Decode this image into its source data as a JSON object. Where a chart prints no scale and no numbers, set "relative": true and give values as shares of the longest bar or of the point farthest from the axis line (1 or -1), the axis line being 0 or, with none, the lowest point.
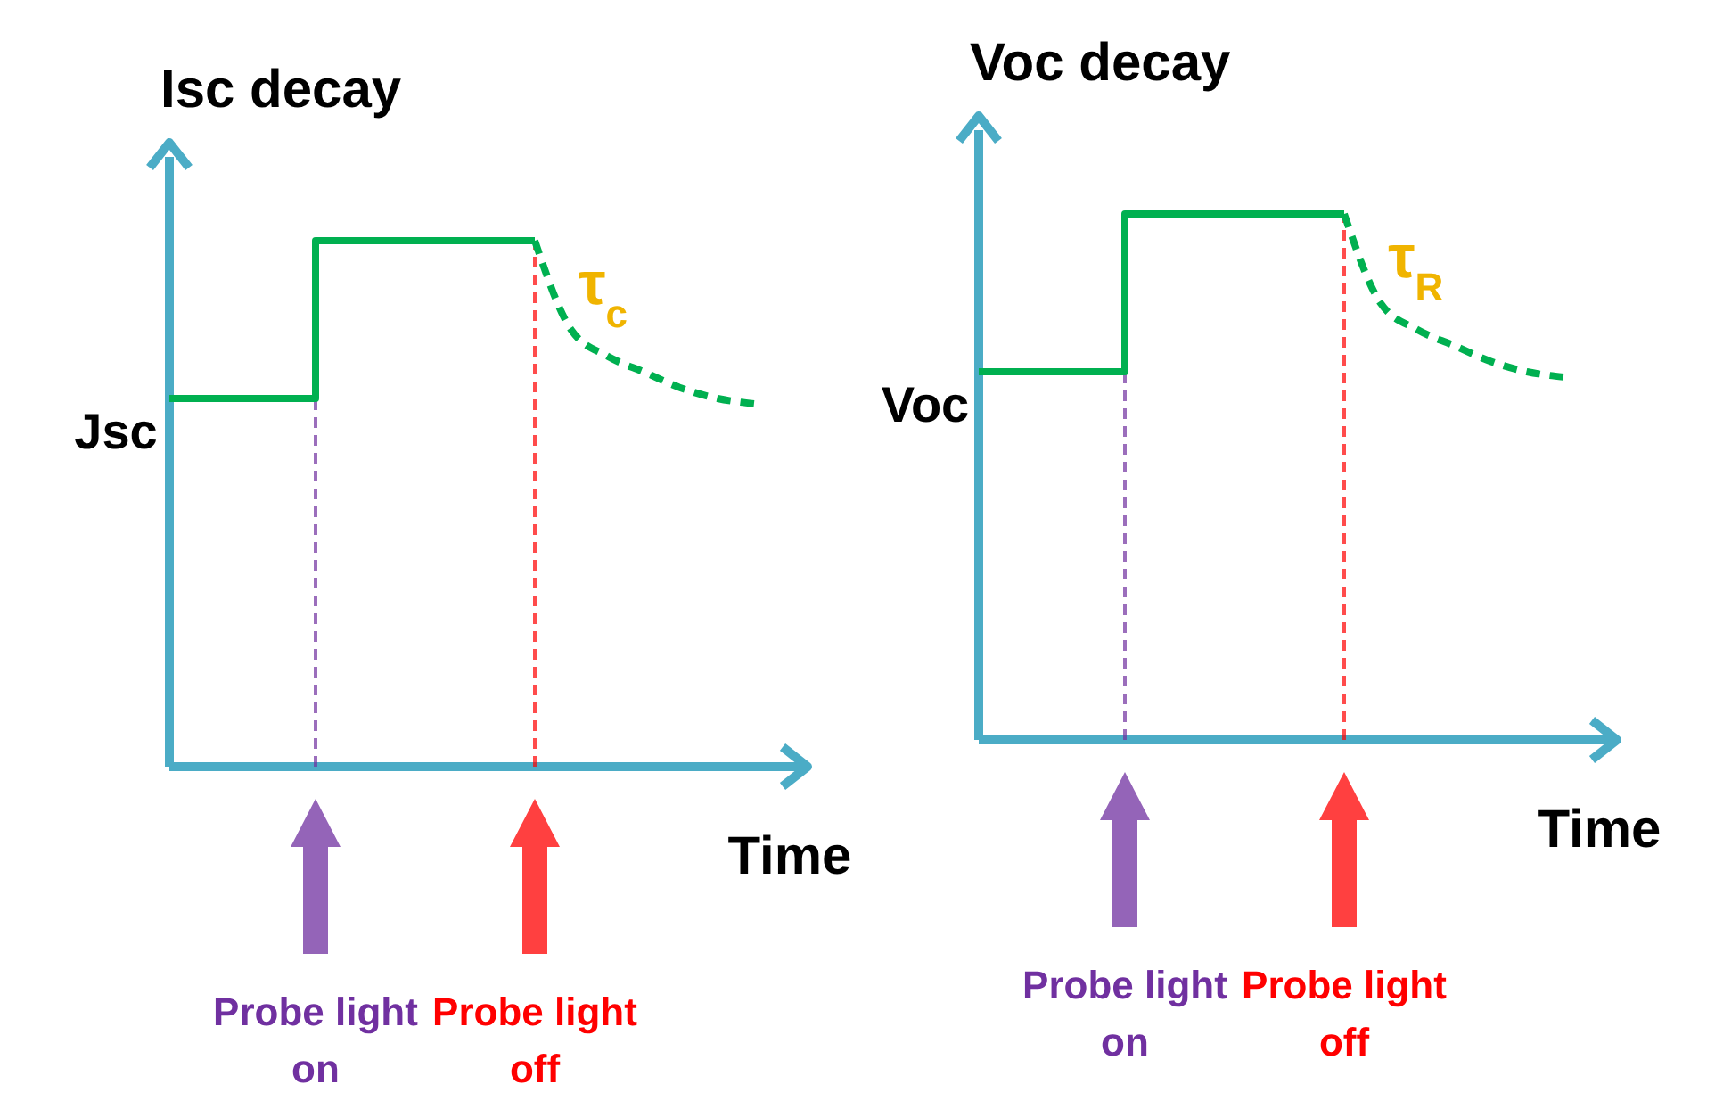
{
  "chart_data": [
    {
      "type": "line",
      "title": "Isc decay",
      "xlabel": "Time",
      "ylabel": "Jsc",
      "relative": true,
      "categories": [
        null,
        null,
        null,
        null,
        null,
        null,
        null,
        null,
        null,
        null,
        null,
        null,
        null,
        null,
        null,
        null,
        null
      ],
      "series": [
        {
          "type": "step",
          "color": "#00b050",
          "line_style": "solid",
          "values": [
            0.7,
            0.7,
            0.7,
            0.7,
            1,
            1,
            1,
            1,
            1,
            1,
            1,
            null,
            null,
            null,
            null,
            null,
            null
          ]
        },
        {
          "color": "#00b050",
          "line_style": "dashed",
          "values": [
            null,
            null,
            null,
            null,
            null,
            null,
            null,
            null,
            null,
            null,
            1,
            0.83,
            0.78,
            0.75,
            0.72,
            0.7,
            0.69
          ]
        }
      ],
      "annotations": [
        "Probe light on",
        "Probe light off",
        "τ$_{c}$"
      ]
    },
    {
      "type": "line",
      "title": "Voc decay",
      "xlabel": "Time",
      "ylabel": "Voc",
      "relative": true,
      "categories": [
        null,
        null,
        null,
        null,
        null,
        null,
        null,
        null,
        null,
        null,
        null,
        null,
        null,
        null,
        null,
        null,
        null
      ],
      "series": [
        {
          "type": "step",
          "color": "#00b050",
          "line_style": "solid",
          "values": [
            0.7,
            0.7,
            0.7,
            0.7,
            1,
            1,
            1,
            1,
            1,
            1,
            1,
            null,
            null,
            null,
            null,
            null,
            null
          ]
        },
        {
          "color": "#00b050",
          "line_style": "dashed",
          "values": [
            null,
            null,
            null,
            null,
            null,
            null,
            null,
            null,
            null,
            null,
            1,
            0.83,
            0.78,
            0.75,
            0.72,
            0.7,
            0.69
          ]
        }
      ],
      "annotations": [
        "Probe light on",
        "Probe light off",
        "τ$_{R}$"
      ]
    }
  ]
}
